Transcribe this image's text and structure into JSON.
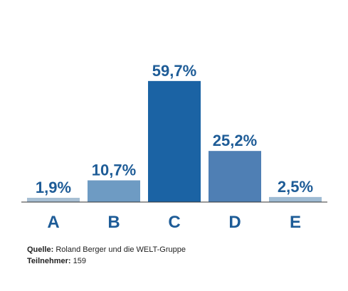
{
  "chart_data": {
    "type": "bar",
    "categories": [
      "A",
      "B",
      "C",
      "D",
      "E"
    ],
    "values": [
      1.9,
      10.7,
      59.7,
      25.2,
      2.5
    ],
    "value_labels": [
      "1,9%",
      "10,7%",
      "59,7%",
      "25,2%",
      "2,5%"
    ],
    "ylim": [
      0,
      60
    ],
    "grid": false,
    "title": "",
    "xlabel": "",
    "ylabel": ""
  },
  "colors": {
    "bars": [
      "#a7bfd3",
      "#6e9bc3",
      "#1b63a4",
      "#4f7fb4",
      "#9ebbd3"
    ],
    "text": "#1e5c97",
    "axis": "#333333"
  },
  "footer": {
    "source_label": "Quelle:",
    "source_value": "Roland Berger und die WELT-Gruppe",
    "participants_label": "Teilnehmer:",
    "participants_value": "159"
  }
}
